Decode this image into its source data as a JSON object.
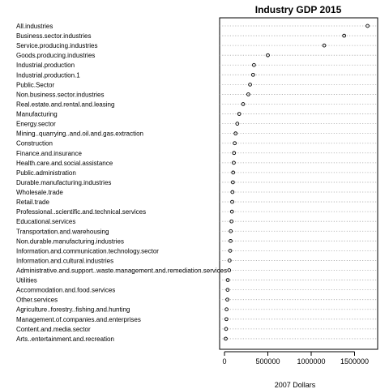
{
  "chart_data": {
    "type": "dotplot",
    "title": "Industry GDP 2015",
    "xlabel": "2007 Dollars",
    "ylabel": "",
    "xlim": [
      -40000,
      1700000
    ],
    "xticks": [
      0,
      500000,
      1000000,
      1500000
    ],
    "xtick_labels": [
      "0",
      "500000",
      "1000000",
      "1500000"
    ],
    "grid": "dotted horizontal guide lines",
    "categories": [
      "All.industries",
      "Business.sector.industries",
      "Service.producing.industries",
      "Goods.producing.industries",
      "Industrial.production",
      "Industrial.production.1",
      "Public.Sector",
      "Non.business.sector.industries",
      "Real.estate.and.rental.and.leasing",
      "Manufacturing",
      "Energy.sector",
      "Mining..quarrying..and.oil.and.gas.extraction",
      "Construction",
      "Finance.and.insurance",
      "Health.care.and.social.assistance",
      "Public.administration",
      "Durable.manufacturing.industries",
      "Wholesale.trade",
      "Retail.trade",
      "Professional..scientific.and.technical.services",
      "Educational.services",
      "Transportation.and.warehousing",
      "Non.durable.manufacturing.industries",
      "Information.and.communication.technology.sector",
      "Information.and.cultural.industries",
      "Administrative.and.support..waste.management.and.remediation.services",
      "Utilities",
      "Accommodation.and.food.services",
      "Other.services",
      "Agriculture..forestry..fishing.and.hunting",
      "Management.of.companies.and.enterprises",
      "Content.and.media.sector",
      "Arts..entertainment.and.recreation"
    ],
    "values": [
      1650000,
      1380000,
      1150000,
      500000,
      340000,
      330000,
      295000,
      275000,
      215000,
      170000,
      148000,
      128000,
      118000,
      110000,
      107000,
      100000,
      97000,
      92000,
      89000,
      86000,
      81000,
      72000,
      70000,
      66000,
      59000,
      54000,
      38000,
      36000,
      33000,
      24000,
      22000,
      18000,
      14000
    ]
  }
}
